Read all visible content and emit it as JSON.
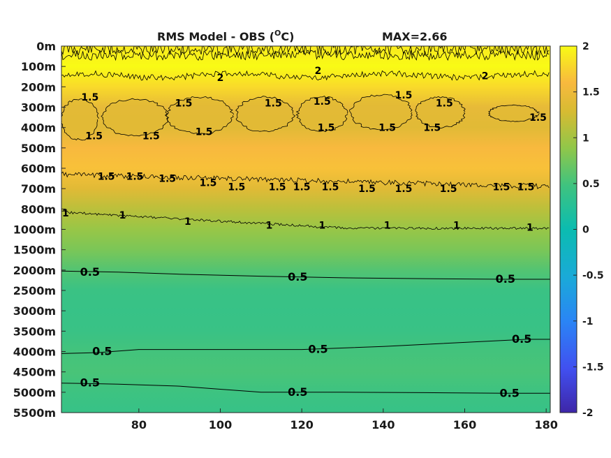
{
  "chart_data": {
    "type": "heatmap",
    "title_left": "RMS Model - OBS (",
    "title_deg": "O",
    "title_unit": "C)",
    "title_right": "MAX=2.66",
    "xlim": [
      61,
      181
    ],
    "x_ticks": [
      80,
      100,
      120,
      140,
      160,
      180
    ],
    "y_tick_labels": [
      "0m",
      "100m",
      "200m",
      "300m",
      "400m",
      "500m",
      "600m",
      "700m",
      "800m",
      "1000m",
      "1500m",
      "2000m",
      "2500m",
      "3000m",
      "3500m",
      "4000m",
      "4500m",
      "5000m",
      "5500m"
    ],
    "colorbar": {
      "range": [
        -2,
        2
      ],
      "ticks": [
        "2",
        "1.5",
        "1",
        "0.5",
        "0",
        "-0.5",
        "-1",
        "-1.5",
        "-2"
      ]
    },
    "depth_profile": [
      {
        "level": 0,
        "value": 1.9
      },
      {
        "level": 1,
        "value": 2.0
      },
      {
        "level": 2,
        "value": 1.8
      },
      {
        "level": 3,
        "value": 1.45
      },
      {
        "level": 4,
        "value": 1.4
      },
      {
        "level": 5,
        "value": 1.6
      },
      {
        "level": 6,
        "value": 1.65
      },
      {
        "level": 7,
        "value": 1.4
      },
      {
        "level": 8,
        "value": 1.15
      },
      {
        "level": 9,
        "value": 0.95
      },
      {
        "level": 10,
        "value": 0.8
      },
      {
        "level": 11,
        "value": 0.6
      },
      {
        "level": 12,
        "value": 0.45
      },
      {
        "level": 13,
        "value": 0.42
      },
      {
        "level": 14,
        "value": 0.44
      },
      {
        "level": 15,
        "value": 0.52
      },
      {
        "level": 16,
        "value": 0.55
      },
      {
        "level": 17,
        "value": 0.48
      },
      {
        "level": 18,
        "value": 0.42
      }
    ],
    "contour_labels": [
      {
        "text": "1.5",
        "x": 68,
        "level": 2.5
      },
      {
        "text": "1.5",
        "x": 91,
        "level": 2.8
      },
      {
        "text": "1.5",
        "x": 113,
        "level": 2.8
      },
      {
        "text": "1.5",
        "x": 125,
        "level": 2.7
      },
      {
        "text": "1.5",
        "x": 145,
        "level": 2.4
      },
      {
        "text": "1.5",
        "x": 155,
        "level": 2.8
      },
      {
        "text": "1.5",
        "x": 178,
        "level": 3.5
      },
      {
        "text": "1.5",
        "x": 69,
        "level": 4.4
      },
      {
        "text": "1.5",
        "x": 83,
        "level": 4.4
      },
      {
        "text": "1.5",
        "x": 96,
        "level": 4.2
      },
      {
        "text": "1.5",
        "x": 126,
        "level": 4.0
      },
      {
        "text": "1.5",
        "x": 141,
        "level": 4.0
      },
      {
        "text": "1.5",
        "x": 152,
        "level": 4.0
      },
      {
        "text": "1.5",
        "x": 72,
        "level": 6.4
      },
      {
        "text": "1.5",
        "x": 79,
        "level": 6.4
      },
      {
        "text": "1.5",
        "x": 87,
        "level": 6.5
      },
      {
        "text": "1.5",
        "x": 97,
        "level": 6.7
      },
      {
        "text": "1.5",
        "x": 104,
        "level": 6.9
      },
      {
        "text": "1.5",
        "x": 114,
        "level": 6.9
      },
      {
        "text": "1.5",
        "x": 120,
        "level": 6.9
      },
      {
        "text": "1.5",
        "x": 127,
        "level": 6.9
      },
      {
        "text": "1.5",
        "x": 136,
        "level": 7.0
      },
      {
        "text": "1.5",
        "x": 145,
        "level": 7.0
      },
      {
        "text": "1.5",
        "x": 156,
        "level": 7.0
      },
      {
        "text": "1.5",
        "x": 169,
        "level": 6.9
      },
      {
        "text": "1.5",
        "x": 175,
        "level": 6.9
      },
      {
        "text": "1",
        "x": 62,
        "level": 8.2
      },
      {
        "text": "1",
        "x": 76,
        "level": 8.3
      },
      {
        "text": "1",
        "x": 92,
        "level": 8.6
      },
      {
        "text": "1",
        "x": 112,
        "level": 8.8
      },
      {
        "text": "1",
        "x": 125,
        "level": 8.8
      },
      {
        "text": "1",
        "x": 141,
        "level": 8.8
      },
      {
        "text": "1",
        "x": 158,
        "level": 8.8
      },
      {
        "text": "1",
        "x": 176,
        "level": 8.9
      },
      {
        "text": "2",
        "x": 100,
        "level": 1.55
      },
      {
        "text": "2",
        "x": 124,
        "level": 1.2
      },
      {
        "text": "2",
        "x": 165,
        "level": 1.45
      },
      {
        "text": "0.5",
        "x": 68,
        "level": 11.1
      },
      {
        "text": "0.5",
        "x": 119,
        "level": 11.35
      },
      {
        "text": "0.5",
        "x": 170,
        "level": 11.45
      },
      {
        "text": "0.5",
        "x": 71,
        "level": 15.0
      },
      {
        "text": "0.5",
        "x": 124,
        "level": 14.9
      },
      {
        "text": "0.5",
        "x": 174,
        "level": 14.4
      },
      {
        "text": "0.5",
        "x": 68,
        "level": 16.55
      },
      {
        "text": "0.5",
        "x": 119,
        "level": 17.0
      },
      {
        "text": "0.5",
        "x": 171,
        "level": 17.05
      }
    ]
  }
}
